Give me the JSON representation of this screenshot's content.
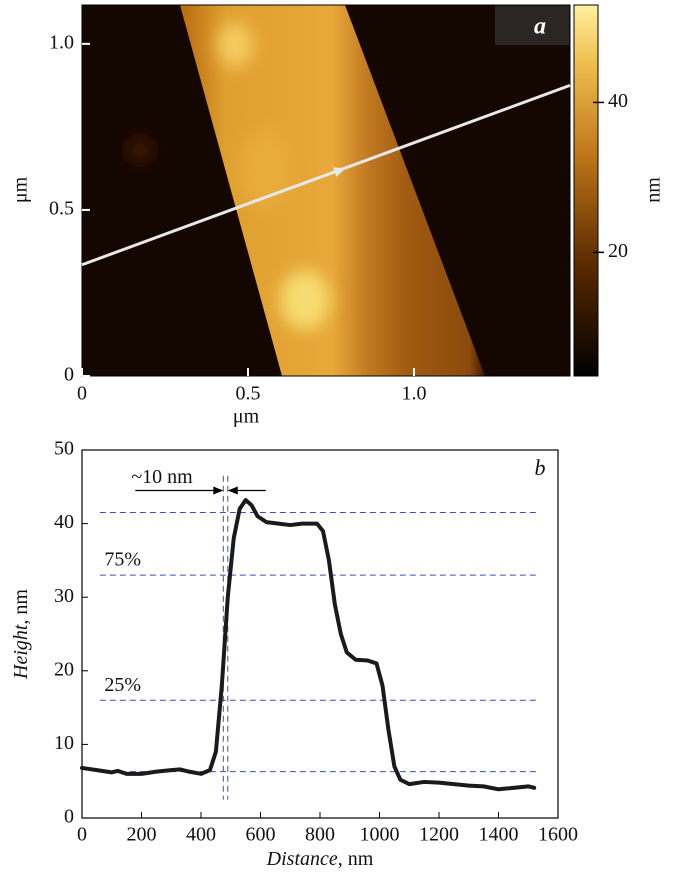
{
  "chart_data": [
    {
      "type": "image",
      "panel_label": "a",
      "xlabel": "μm",
      "ylabel": "μm",
      "xlim": [
        0,
        1.47
      ],
      "ylim": [
        0,
        1.117
      ],
      "xticks": [
        0,
        0.5,
        {
          "value": 1,
          "label": "1.0"
        }
      ],
      "yticks": [
        0,
        0.5,
        {
          "value": 1,
          "label": "1.0"
        }
      ],
      "colorbar": {
        "label": "nm",
        "lim": [
          3.5,
          53
        ],
        "ticks": [
          20,
          40
        ]
      },
      "profile_line": {
        "x": [
          0,
          1.47
        ],
        "y": [
          0.335,
          0.875
        ],
        "color": "#e8e8e8"
      }
    },
    {
      "type": "line",
      "panel_label": "b",
      "xlabel": "Distance, nm",
      "ylabel": "Height, nm",
      "xlim": [
        0,
        1600
      ],
      "ylim": [
        0,
        50
      ],
      "xticks": [
        0,
        200,
        400,
        600,
        800,
        1000,
        1200,
        1400,
        1600
      ],
      "yticks": [
        0,
        10,
        20,
        30,
        40,
        50
      ],
      "x": [
        0,
        50,
        100,
        120,
        150,
        200,
        250,
        300,
        330,
        360,
        400,
        430,
        450,
        470,
        490,
        510,
        530,
        550,
        570,
        590,
        620,
        660,
        700,
        740,
        790,
        810,
        830,
        850,
        870,
        890,
        920,
        960,
        990,
        1010,
        1030,
        1050,
        1070,
        1100,
        1150,
        1200,
        1250,
        1300,
        1350,
        1400,
        1450,
        1500,
        1520
      ],
      "series": [
        {
          "color": "#1a1a1a",
          "values": [
            6.8,
            6.5,
            6.2,
            6.4,
            6.0,
            6.0,
            6.3,
            6.5,
            6.6,
            6.3,
            6.0,
            6.5,
            9,
            18,
            30,
            38,
            42,
            43.2,
            42.5,
            41,
            40.2,
            40,
            39.8,
            40,
            40,
            39,
            35,
            29,
            25,
            22.5,
            21.5,
            21.4,
            21,
            18,
            12,
            7,
            5.2,
            4.6,
            4.9,
            4.8,
            4.6,
            4.4,
            4.3,
            3.9,
            4.1,
            4.3,
            4.1
          ]
        }
      ],
      "hlines": [
        41.5,
        33,
        16,
        6.3
      ],
      "vlines": [
        475,
        490
      ],
      "reference_color": "#3a4fc0",
      "annotations": [
        "~10 nm",
        "75%",
        "25%"
      ]
    }
  ]
}
